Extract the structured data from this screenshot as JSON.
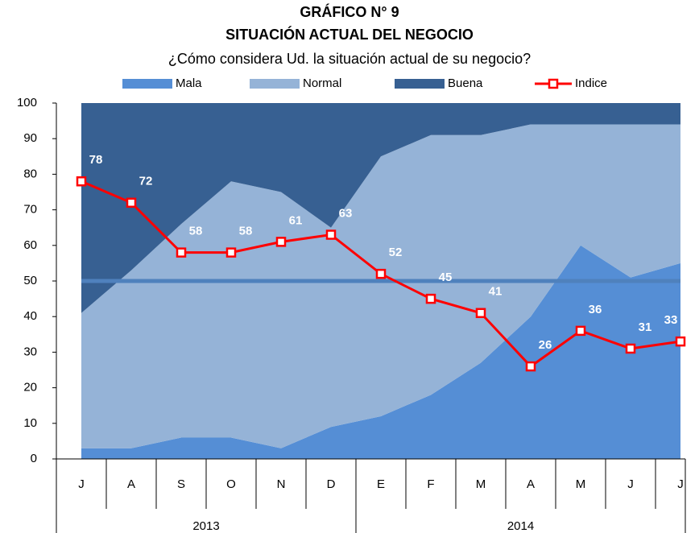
{
  "chart_data": {
    "type": "area",
    "title": "GRÁFICO N° 9",
    "subtitle": "SITUACIÓN ACTUAL DEL NEGOCIO",
    "description": "¿Cómo considera Ud. la situación actual de su negocio?",
    "categories": [
      "J",
      "A",
      "S",
      "O",
      "N",
      "D",
      "E",
      "F",
      "M",
      "A",
      "M",
      "J",
      "J"
    ],
    "x_groups": [
      {
        "label": "2013",
        "count": 6
      },
      {
        "label": "2014",
        "count": 7
      }
    ],
    "series": [
      {
        "name": "Mala",
        "type": "area",
        "color": "#558ed5",
        "values": [
          3,
          3,
          6,
          6,
          3,
          9,
          12,
          18,
          27,
          40,
          60,
          51,
          55
        ]
      },
      {
        "name": "Normal",
        "type": "area",
        "color": "#95b3d7",
        "values": [
          38,
          50,
          60,
          72,
          72,
          56,
          73,
          73,
          64,
          54,
          34,
          43,
          39
        ]
      },
      {
        "name": "Buena",
        "type": "area",
        "color": "#376092",
        "values": [
          59,
          47,
          34,
          22,
          25,
          35,
          15,
          9,
          9,
          6,
          6,
          6,
          6
        ]
      },
      {
        "name": "Indice",
        "type": "line",
        "color": "#ff0000",
        "values": [
          78,
          72,
          58,
          58,
          61,
          63,
          52,
          45,
          41,
          26,
          36,
          31,
          33
        ]
      }
    ],
    "reference_line": {
      "value": 50,
      "color": "#4f81bd"
    },
    "ylim": [
      0,
      100
    ],
    "yticks": [
      0,
      10,
      20,
      30,
      40,
      50,
      60,
      70,
      80,
      90,
      100
    ],
    "legend": "top"
  }
}
